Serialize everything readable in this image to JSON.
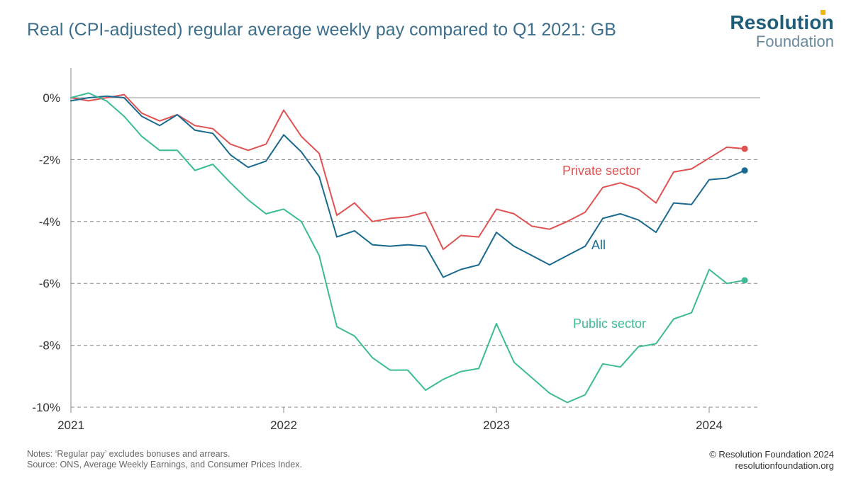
{
  "header": {
    "title": "Real (CPI-adjusted) regular average weekly pay compared to Q1 2021: GB",
    "logo_line1": "Resolution",
    "logo_line2": "Foundation"
  },
  "footer": {
    "notes_line1": "Notes: ‘Regular pay’ excludes bonuses and arrears.",
    "notes_line2": "Source: ONS, Average Weekly Earnings, and Consumer Prices Index.",
    "copyright_line1": "© Resolution Foundation 2024",
    "copyright_line2": "resolutionfoundation.org"
  },
  "chart_data": {
    "type": "line",
    "title": "Real (CPI-adjusted) regular average weekly pay compared to Q1 2021: GB",
    "xlabel": "",
    "ylabel": "",
    "ylim": [
      -10,
      0
    ],
    "xlim": [
      2021.0,
      2024.24
    ],
    "x_ticks": [
      {
        "value": 2021,
        "label": "2021"
      },
      {
        "value": 2022,
        "label": "2022"
      },
      {
        "value": 2023,
        "label": "2023"
      },
      {
        "value": 2024,
        "label": "2024"
      }
    ],
    "y_ticks": [
      {
        "value": 0,
        "label": "0%"
      },
      {
        "value": -2,
        "label": "-2%"
      },
      {
        "value": -4,
        "label": "-4%"
      },
      {
        "value": -6,
        "label": "-6%"
      },
      {
        "value": -8,
        "label": "-8%"
      },
      {
        "value": -10,
        "label": "-10%"
      }
    ],
    "grid": "horizontal-dashed",
    "legend": "inline-labels",
    "x": [
      2021.0,
      2021.083,
      2021.167,
      2021.25,
      2021.333,
      2021.417,
      2021.5,
      2021.583,
      2021.667,
      2021.75,
      2021.833,
      2021.917,
      2022.0,
      2022.083,
      2022.167,
      2022.25,
      2022.333,
      2022.417,
      2022.5,
      2022.583,
      2022.667,
      2022.75,
      2022.833,
      2022.917,
      2023.0,
      2023.083,
      2023.167,
      2023.25,
      2023.333,
      2023.417,
      2023.5,
      2023.583,
      2023.667,
      2023.75,
      2023.833,
      2023.917,
      2024.0,
      2024.083,
      2024.167
    ],
    "series": [
      {
        "name": "Private sector",
        "color": "#e05252",
        "end_marker": true,
        "values": [
          0.0,
          -0.1,
          0.0,
          0.1,
          -0.5,
          -0.75,
          -0.55,
          -0.9,
          -1.0,
          -1.5,
          -1.7,
          -1.5,
          -0.4,
          -1.25,
          -1.8,
          -3.8,
          -3.4,
          -4.0,
          -3.9,
          -3.85,
          -3.7,
          -4.9,
          -4.45,
          -4.5,
          -3.6,
          -3.75,
          -4.15,
          -4.25,
          -4.0,
          -3.7,
          -2.9,
          -2.75,
          -2.95,
          -3.4,
          -2.4,
          -2.3,
          -1.95,
          -1.6,
          -1.65
        ]
      },
      {
        "name": "All",
        "color": "#1a6a8f",
        "end_marker": true,
        "values": [
          -0.1,
          0.0,
          0.05,
          0.0,
          -0.6,
          -0.9,
          -0.55,
          -1.05,
          -1.15,
          -1.85,
          -2.25,
          -2.05,
          -1.2,
          -1.75,
          -2.55,
          -4.5,
          -4.3,
          -4.75,
          -4.8,
          -4.75,
          -4.8,
          -5.8,
          -5.55,
          -5.4,
          -4.35,
          -4.8,
          -5.1,
          -5.4,
          -5.1,
          -4.8,
          -3.9,
          -3.75,
          -3.95,
          -4.35,
          -3.4,
          -3.45,
          -2.65,
          -2.6,
          -2.35
        ]
      },
      {
        "name": "Public sector",
        "color": "#3dbb94",
        "end_marker": true,
        "values": [
          0.0,
          0.15,
          -0.1,
          -0.6,
          -1.25,
          -1.7,
          -1.7,
          -2.35,
          -2.15,
          -2.75,
          -3.3,
          -3.75,
          -3.6,
          -4.0,
          -5.1,
          -7.4,
          -7.7,
          -8.4,
          -8.8,
          -8.8,
          -9.45,
          -9.1,
          -8.85,
          -8.75,
          -7.3,
          -8.55,
          -9.05,
          -9.55,
          -9.85,
          -9.6,
          -8.6,
          -8.7,
          -8.05,
          -7.95,
          -7.15,
          -6.95,
          -5.55,
          -6.0,
          -5.9
        ]
      }
    ]
  }
}
